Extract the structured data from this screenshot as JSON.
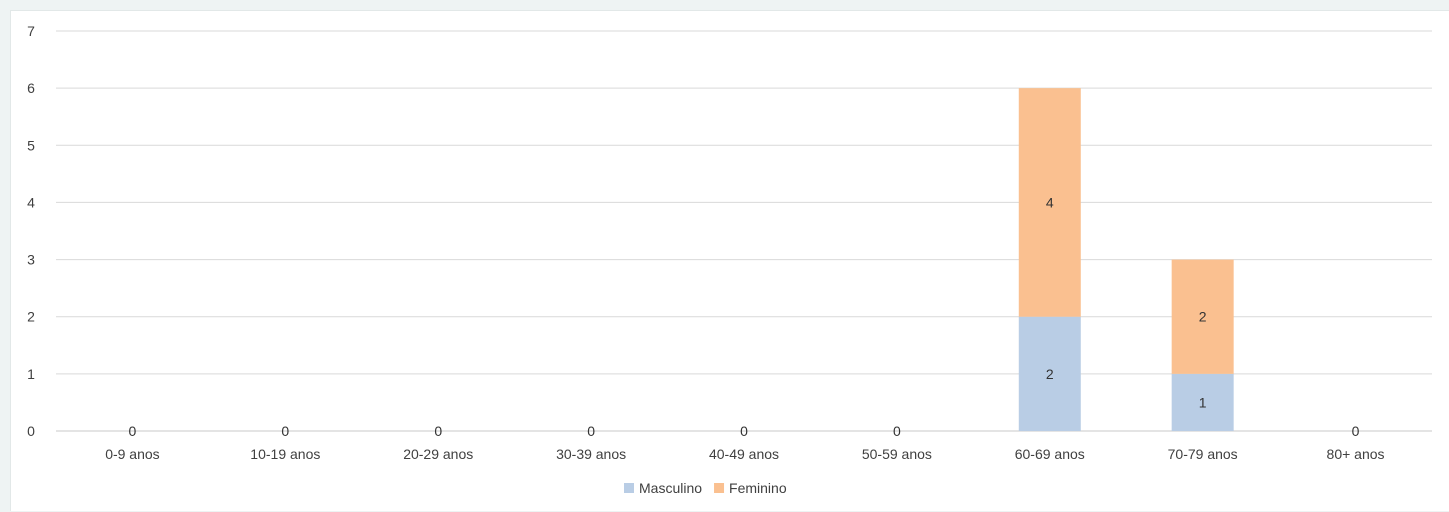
{
  "chart_data": {
    "type": "bar",
    "stacked": true,
    "categories": [
      "0-9 anos",
      "10-19 anos",
      "20-29 anos",
      "30-39 anos",
      "40-49 anos",
      "50-59 anos",
      "60-69 anos",
      "70-79 anos",
      "80+ anos"
    ],
    "series": [
      {
        "name": "Masculino",
        "values": [
          0,
          0,
          0,
          0,
          0,
          0,
          2,
          1,
          0
        ],
        "color": "#b9cde5"
      },
      {
        "name": "Feminino",
        "values": [
          0,
          0,
          0,
          0,
          0,
          0,
          4,
          2,
          0
        ],
        "color": "#fac090"
      }
    ],
    "ylim": [
      0,
      7
    ],
    "yticks": [
      0,
      1,
      2,
      3,
      4,
      5,
      6,
      7
    ],
    "grid": true,
    "legend_position": "bottom"
  }
}
